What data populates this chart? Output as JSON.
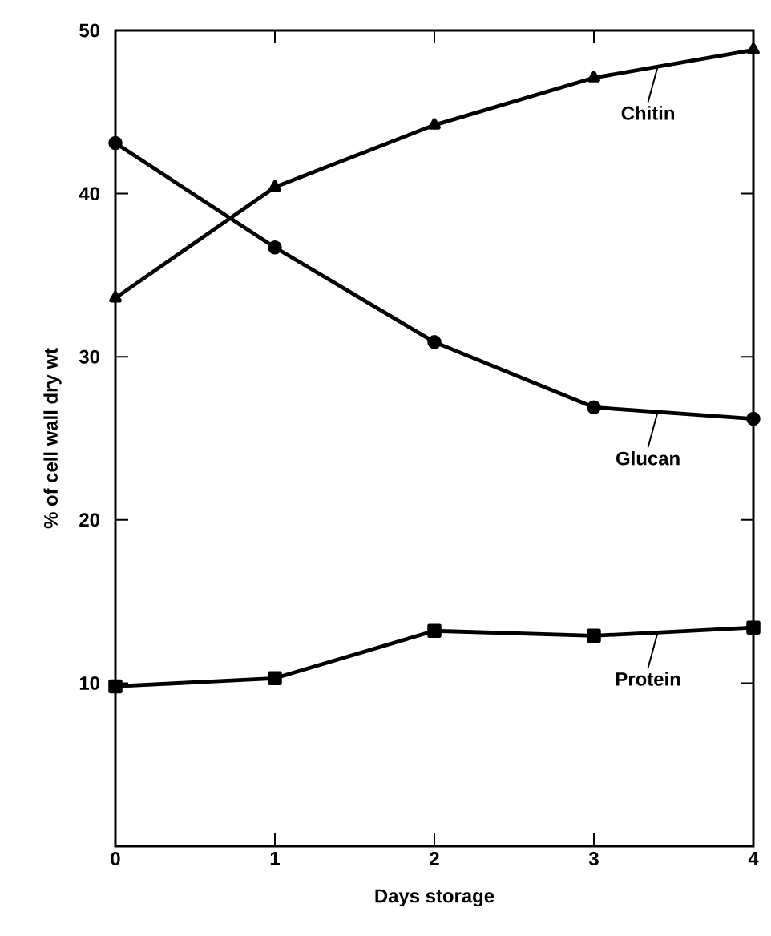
{
  "chart_data": {
    "type": "line",
    "xlabel": "Days storage",
    "ylabel": "% of cell wall dry wt",
    "x": [
      0,
      1,
      2,
      3,
      4
    ],
    "series": [
      {
        "name": "Chitin",
        "color": "#000000",
        "marker": "triangle",
        "values": [
          33.6,
          40.4,
          44.2,
          47.1,
          48.8
        ]
      },
      {
        "name": "Glucan",
        "color": "#000000",
        "marker": "circle",
        "values": [
          43.1,
          36.7,
          30.9,
          26.9,
          26.2
        ]
      },
      {
        "name": "Protein",
        "color": "#000000",
        "marker": "square",
        "values": [
          9.8,
          10.3,
          13.2,
          12.9,
          13.4
        ]
      }
    ],
    "xlim": [
      0,
      4
    ],
    "xticks": [
      0,
      1,
      2,
      3,
      4
    ],
    "ylim": [
      0,
      50
    ],
    "yticks": [
      {
        "value": 0,
        "label": null
      },
      10,
      20,
      30,
      40,
      50
    ],
    "line_style": "solid",
    "grid": false,
    "legend": "right"
  }
}
